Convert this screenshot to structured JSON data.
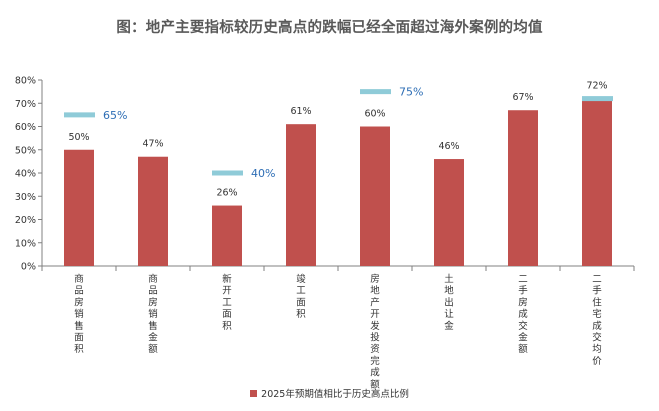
{
  "chart_data": {
    "type": "bar",
    "title": "图：地产主要指标较历史高点的跌幅已经全面超过海外案例的均值",
    "categories": [
      "商品房销售面积",
      "商品房销售金额",
      "新开工面积",
      "竣工面积",
      "房地产开发投资完成额",
      "土地出让金",
      "二手房成交金额",
      "二手住宅成交均价"
    ],
    "series": [
      {
        "name": "2025年预期值相比于历史高点比例",
        "values": [
          50,
          47,
          26,
          61,
          60,
          46,
          67,
          72
        ],
        "value_labels": [
          "50%",
          "47%",
          "26%",
          "61%",
          "60%",
          "46%",
          "67%",
          "72%"
        ]
      }
    ],
    "reference_marks": [
      {
        "category_index": 0,
        "value": 65,
        "label": "65%"
      },
      {
        "category_index": 2,
        "value": 40,
        "label": "40%"
      },
      {
        "category_index": 4,
        "value": 75,
        "label": "75%"
      },
      {
        "category_index": 7,
        "value": 72,
        "label": ""
      }
    ],
    "yticks": [
      "0%",
      "10%",
      "20%",
      "30%",
      "40%",
      "50%",
      "60%",
      "70%",
      "80%"
    ],
    "ylim": [
      0,
      80
    ],
    "xlabel": "",
    "ylabel": "",
    "legend_position": "bottom",
    "grid": false,
    "colors": {
      "bar": "#c0504d",
      "reference_mark": "#8fcbd8",
      "reference_text": "#2e6eb5",
      "axis": "#808080",
      "title": "#595959"
    }
  }
}
